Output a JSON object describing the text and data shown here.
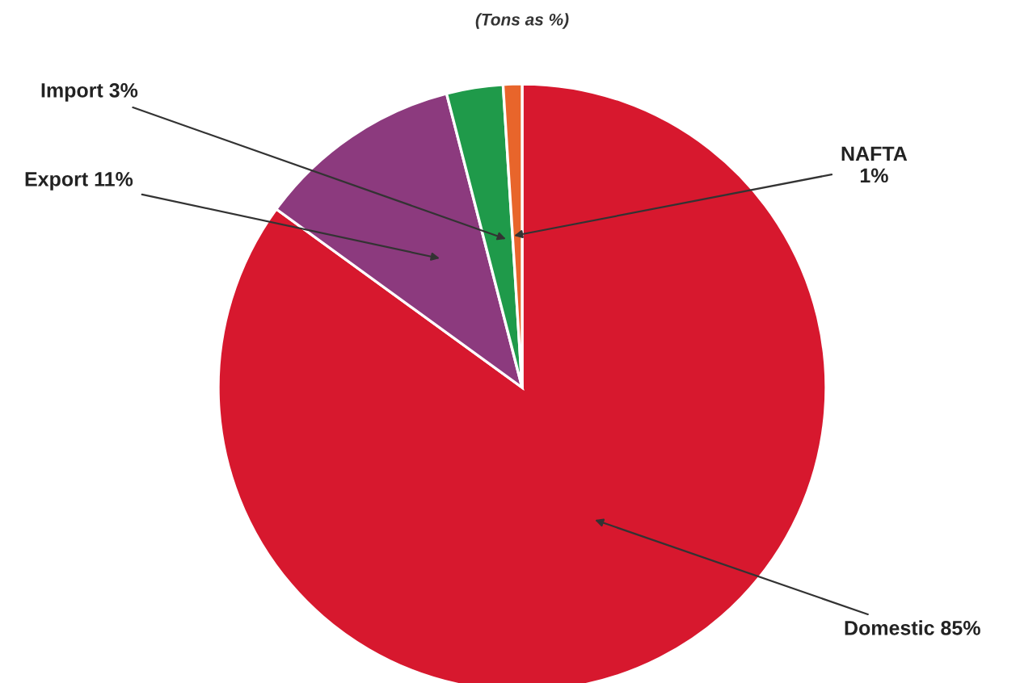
{
  "chart_data": {
    "type": "pie",
    "title": "(Tons as %)",
    "categories": [
      "Domestic",
      "Export",
      "Import",
      "NAFTA"
    ],
    "values": [
      85,
      11,
      3,
      1
    ],
    "value_labels": [
      "85%",
      "11%",
      "3%",
      "1%"
    ],
    "colors": [
      "#d7182e",
      "#8c3a7e",
      "#1f9a4a",
      "#e8652b"
    ],
    "legend": false
  }
}
